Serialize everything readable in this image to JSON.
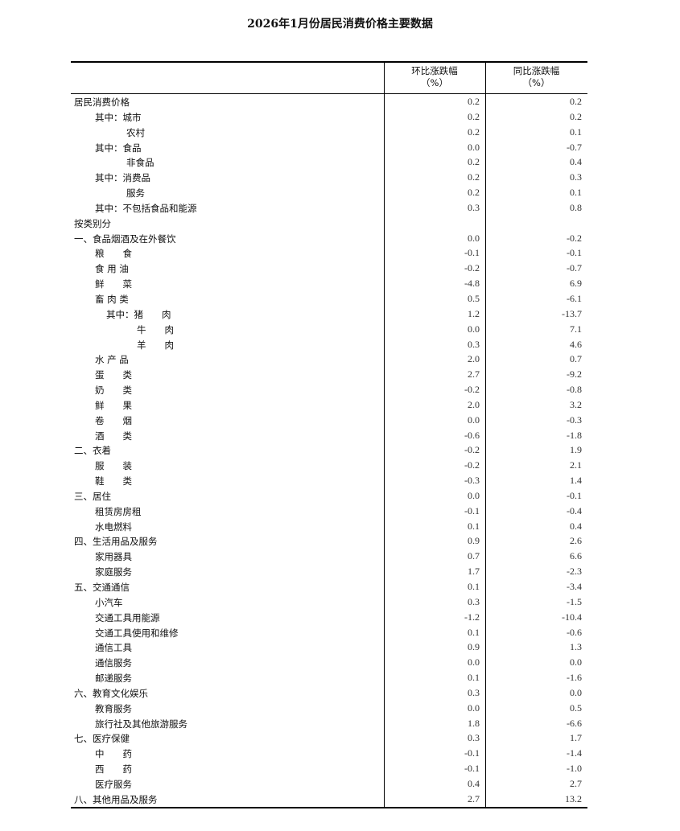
{
  "title": "2026年1月份居民消费价格主要数据",
  "headers": {
    "mom": "环比涨跌幅",
    "mom_unit": "（%）",
    "yoy": "同比涨跌幅",
    "yoy_unit": "（%）"
  },
  "rows": [
    {
      "label": "居民消费价格",
      "level": 0,
      "mom": "0.2",
      "yoy": "0.2"
    },
    {
      "label": "其中：城市",
      "level": 1,
      "mom": "0.2",
      "yoy": "0.2"
    },
    {
      "label": "农村",
      "level": 2,
      "mom": "0.2",
      "yoy": "0.1"
    },
    {
      "label": "其中：食品",
      "level": 1,
      "mom": "0.0",
      "yoy": "-0.7"
    },
    {
      "label": "非食品",
      "level": 2,
      "mom": "0.2",
      "yoy": "0.4"
    },
    {
      "label": "其中：消费品",
      "level": 1,
      "mom": "0.2",
      "yoy": "0.3"
    },
    {
      "label": "服务",
      "level": 2,
      "mom": "0.2",
      "yoy": "0.1"
    },
    {
      "label": "其中：不包括食品和能源",
      "level": 1,
      "mom": "0.3",
      "yoy": "0.8"
    },
    {
      "label": "按类别分",
      "level": 0,
      "mom": "",
      "yoy": ""
    },
    {
      "label": "一、食品烟酒及在外餐饮",
      "level": 0,
      "mom": "0.0",
      "yoy": "-0.2"
    },
    {
      "label": "粮　　食",
      "level": 1,
      "mom": "-0.1",
      "yoy": "-0.1"
    },
    {
      "label": "食 用 油",
      "level": 1,
      "mom": "-0.2",
      "yoy": "-0.7"
    },
    {
      "label": "鲜　　菜",
      "level": 1,
      "mom": "-4.8",
      "yoy": "6.9"
    },
    {
      "label": "畜 肉 类",
      "level": 1,
      "mom": "0.5",
      "yoy": "-6.1"
    },
    {
      "label": "其中：猪　　肉",
      "level": 3,
      "mom": "1.2",
      "yoy": "-13.7"
    },
    {
      "label": "牛　　肉",
      "level": 4,
      "mom": "0.0",
      "yoy": "7.1"
    },
    {
      "label": "羊　　肉",
      "level": 4,
      "mom": "0.3",
      "yoy": "4.6"
    },
    {
      "label": "水 产 品",
      "level": 1,
      "mom": "2.0",
      "yoy": "0.7"
    },
    {
      "label": "蛋　　类",
      "level": 1,
      "mom": "2.7",
      "yoy": "-9.2"
    },
    {
      "label": "奶　　类",
      "level": 1,
      "mom": "-0.2",
      "yoy": "-0.8"
    },
    {
      "label": "鲜　　果",
      "level": 1,
      "mom": "2.0",
      "yoy": "3.2"
    },
    {
      "label": "卷　　烟",
      "level": 1,
      "mom": "0.0",
      "yoy": "-0.3"
    },
    {
      "label": "酒　　类",
      "level": 1,
      "mom": "-0.6",
      "yoy": "-1.8"
    },
    {
      "label": "二、衣着",
      "level": 0,
      "mom": "-0.2",
      "yoy": "1.9"
    },
    {
      "label": "服　　装",
      "level": 1,
      "mom": "-0.2",
      "yoy": "2.1"
    },
    {
      "label": "鞋　　类",
      "level": 1,
      "mom": "-0.3",
      "yoy": "1.4"
    },
    {
      "label": "三、居住",
      "level": 0,
      "mom": "0.0",
      "yoy": "-0.1"
    },
    {
      "label": "租赁房房租",
      "level": 1,
      "mom": "-0.1",
      "yoy": "-0.4"
    },
    {
      "label": "水电燃料",
      "level": 1,
      "mom": "0.1",
      "yoy": "0.4"
    },
    {
      "label": "四、生活用品及服务",
      "level": 0,
      "mom": "0.9",
      "yoy": "2.6"
    },
    {
      "label": "家用器具",
      "level": 1,
      "mom": "0.7",
      "yoy": "6.6"
    },
    {
      "label": "家庭服务",
      "level": 1,
      "mom": "1.7",
      "yoy": "-2.3"
    },
    {
      "label": "五、交通通信",
      "level": 0,
      "mom": "0.1",
      "yoy": "-3.4"
    },
    {
      "label": "小汽车",
      "level": 1,
      "mom": "0.3",
      "yoy": "-1.5"
    },
    {
      "label": "交通工具用能源",
      "level": 1,
      "mom": "-1.2",
      "yoy": "-10.4"
    },
    {
      "label": "交通工具使用和维修",
      "level": 1,
      "mom": "0.1",
      "yoy": "-0.6"
    },
    {
      "label": "通信工具",
      "level": 1,
      "mom": "0.9",
      "yoy": "1.3"
    },
    {
      "label": "通信服务",
      "level": 1,
      "mom": "0.0",
      "yoy": "0.0"
    },
    {
      "label": "邮递服务",
      "level": 1,
      "mom": "0.1",
      "yoy": "-1.6"
    },
    {
      "label": "六、教育文化娱乐",
      "level": 0,
      "mom": "0.3",
      "yoy": "0.0"
    },
    {
      "label": "教育服务",
      "level": 1,
      "mom": "0.0",
      "yoy": "0.5"
    },
    {
      "label": "旅行社及其他旅游服务",
      "level": 1,
      "mom": "1.8",
      "yoy": "-6.6"
    },
    {
      "label": "七、医疗保健",
      "level": 0,
      "mom": "0.3",
      "yoy": "1.7"
    },
    {
      "label": "中　　药",
      "level": 1,
      "mom": "-0.1",
      "yoy": "-1.4"
    },
    {
      "label": "西　　药",
      "level": 1,
      "mom": "-0.1",
      "yoy": "-1.0"
    },
    {
      "label": "医疗服务",
      "level": 1,
      "mom": "0.4",
      "yoy": "2.7"
    },
    {
      "label": "八、其他用品及服务",
      "level": 0,
      "mom": "2.7",
      "yoy": "13.2"
    }
  ]
}
